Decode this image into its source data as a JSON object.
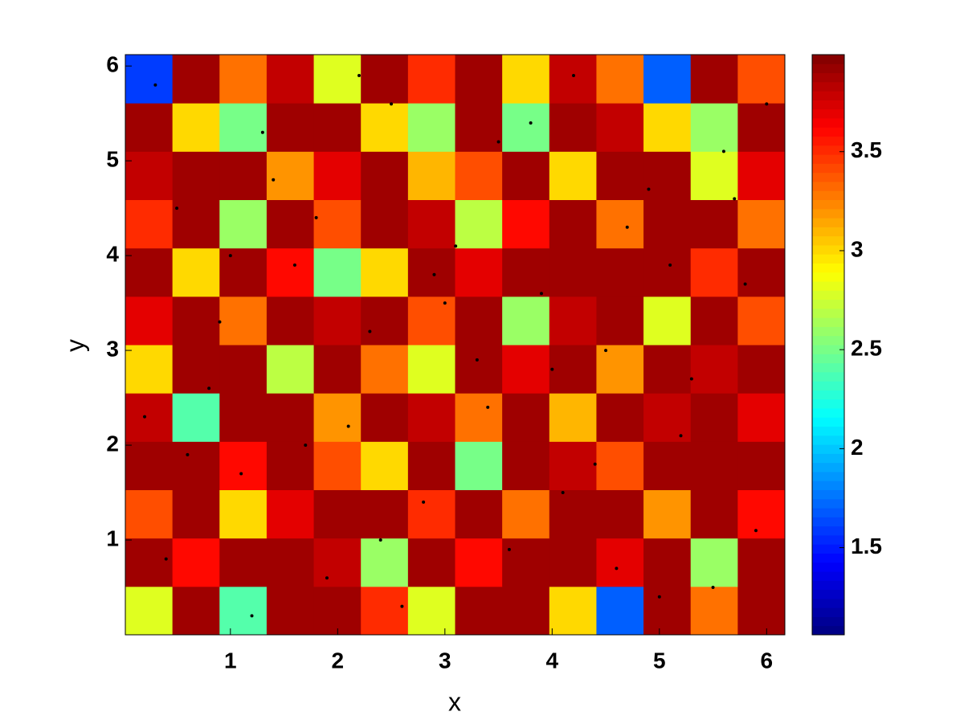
{
  "chart_data": {
    "type": "heatmap",
    "xlabel": "x",
    "ylabel": "y",
    "xlim": [
      0.02,
      6.17
    ],
    "ylim": [
      0,
      6.12
    ],
    "xticks": [
      1,
      2,
      3,
      4,
      5,
      6
    ],
    "yticks": [
      1,
      2,
      3,
      4,
      5,
      6
    ],
    "colormap": "jet",
    "clim": [
      1.06,
      3.99
    ],
    "cticks": [
      1.5,
      2,
      2.5,
      3,
      3.5
    ],
    "z": [
      [
        2.8,
        3.9,
        2.4,
        3.9,
        3.9,
        3.5,
        2.8,
        3.9,
        3.9,
        3.0,
        1.7,
        3.9,
        3.3,
        3.9
      ],
      [
        3.9,
        3.6,
        3.9,
        3.9,
        3.8,
        2.6,
        3.9,
        3.6,
        3.9,
        3.9,
        3.7,
        3.9,
        2.6,
        3.9
      ],
      [
        3.4,
        3.9,
        3.0,
        3.7,
        3.9,
        3.9,
        3.5,
        3.9,
        3.3,
        3.9,
        3.9,
        3.2,
        3.9,
        3.6
      ],
      [
        3.9,
        3.9,
        3.6,
        3.9,
        3.4,
        3.0,
        3.9,
        2.5,
        3.9,
        3.8,
        3.4,
        3.9,
        3.9,
        3.9
      ],
      [
        3.8,
        2.4,
        3.9,
        3.9,
        3.2,
        3.9,
        3.8,
        3.3,
        3.9,
        3.1,
        3.9,
        3.8,
        3.9,
        3.7
      ],
      [
        3.0,
        3.9,
        3.9,
        2.7,
        3.9,
        3.3,
        2.8,
        3.9,
        3.7,
        3.9,
        3.2,
        3.9,
        3.8,
        3.9
      ],
      [
        3.7,
        3.9,
        3.3,
        3.9,
        3.8,
        3.9,
        3.4,
        3.9,
        2.6,
        3.8,
        3.9,
        2.8,
        3.9,
        3.4
      ],
      [
        3.9,
        3.0,
        3.9,
        3.6,
        2.5,
        3.0,
        3.9,
        3.7,
        3.9,
        3.9,
        3.9,
        3.9,
        3.5,
        3.9
      ],
      [
        3.5,
        3.9,
        2.6,
        3.9,
        3.4,
        3.9,
        3.8,
        2.7,
        3.6,
        3.9,
        3.3,
        3.9,
        3.9,
        3.3
      ],
      [
        3.8,
        3.9,
        3.9,
        3.2,
        3.7,
        3.9,
        3.1,
        3.4,
        3.9,
        3.0,
        3.9,
        3.9,
        2.8,
        3.7
      ],
      [
        3.9,
        3.0,
        2.5,
        3.9,
        3.9,
        3.0,
        2.6,
        3.9,
        2.5,
        3.9,
        3.8,
        3.0,
        2.6,
        3.9
      ],
      [
        1.6,
        3.9,
        3.3,
        3.8,
        2.8,
        3.9,
        3.5,
        3.9,
        3.0,
        3.8,
        3.3,
        1.7,
        3.9,
        3.4
      ]
    ],
    "particles": {
      "color": "#000000",
      "x": [
        0.3,
        0.5,
        0.8,
        1.1,
        1.3,
        1.6,
        1.9,
        2.1,
        2.3,
        2.5,
        2.8,
        3.1,
        3.3,
        3.6,
        3.9,
        4.2,
        4.4,
        4.7,
        5.0,
        5.3,
        5.6,
        5.9,
        0.4,
        0.9,
        1.4,
        1.7,
        2.2,
        2.6,
        2.9,
        3.4,
        3.8,
        4.1,
        4.5,
        4.9,
        5.2,
        5.5,
        5.8,
        6.0,
        0.6,
        1.2,
        1.8,
        2.4,
        3.0,
        3.5,
        4.0,
        4.6,
        5.1,
        5.7,
        0.2,
        1.0
      ],
      "y": [
        5.8,
        4.5,
        2.6,
        1.7,
        5.3,
        3.9,
        0.6,
        2.2,
        3.2,
        5.6,
        1.4,
        4.1,
        2.9,
        0.9,
        3.6,
        5.9,
        1.8,
        4.3,
        0.4,
        2.7,
        5.1,
        1.1,
        0.8,
        3.3,
        4.8,
        2.0,
        5.9,
        0.3,
        3.8,
        2.4,
        5.4,
        1.5,
        3.0,
        4.7,
        2.1,
        0.5,
        3.7,
        5.6,
        1.9,
        0.2,
        4.4,
        1.0,
        3.5,
        5.2,
        2.8,
        0.7,
        3.9,
        4.6,
        2.3,
        4.0
      ]
    }
  }
}
